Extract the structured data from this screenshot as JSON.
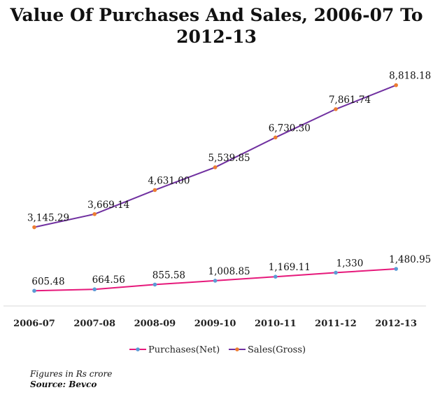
{
  "chart_data": {
    "type": "line",
    "title": "Value Of Purchases And Sales, 2006-07 To 2012-13",
    "categories": [
      "2006-07",
      "2007-08",
      "2008-09",
      "2009-10",
      "2010-11",
      "2011-12",
      "2012-13"
    ],
    "series": [
      {
        "name": "Purchases(Net)",
        "values": [
          605.48,
          664.56,
          855.58,
          1008.85,
          1169.11,
          1330,
          1480.95
        ],
        "labels": [
          "605.48",
          "664.56",
          "855.58",
          "1,008.85",
          "1,169.11",
          "1,330",
          "1,480.95"
        ],
        "color": "#e6197b",
        "marker_color": "#5b9bd5"
      },
      {
        "name": "Sales(Gross)",
        "values": [
          3145.29,
          3669.14,
          4631.0,
          5539.85,
          6730.3,
          7861.74,
          8818.18
        ],
        "labels": [
          "3,145.29",
          "3,669.14",
          "4,631.00",
          "5,539.85",
          "6,730.30",
          "7,861.74",
          "8,818.18"
        ],
        "color": "#7030a0",
        "marker_color": "#ed7d31"
      }
    ],
    "grid": false,
    "legend_position": "bottom"
  },
  "footnote": {
    "units": "Figures in Rs crore",
    "source": "Source: Bevco"
  }
}
